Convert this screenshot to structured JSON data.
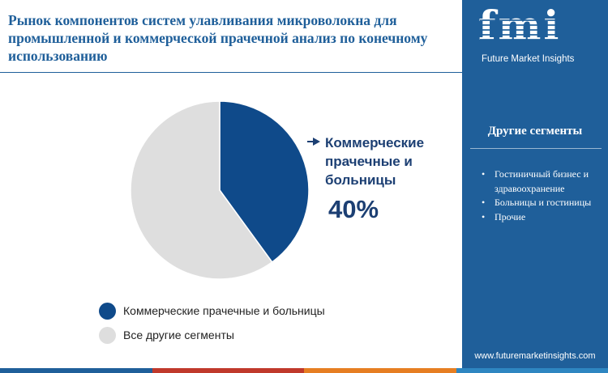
{
  "title": "Рынок компонентов систем улавливания микроволокна для промышленной и коммерческой прачечной анализ по конечному использованию",
  "brand": {
    "logo_letters": "fmi",
    "name": "Future Market Insights",
    "url": "www.futuremarketinsights.com",
    "primary_color": "#1f5f9a"
  },
  "callout": {
    "label": "Коммерческие прачечные и больницы",
    "value": "40%"
  },
  "legend": [
    {
      "label": "Коммерческие прачечные и больницы",
      "color": "#0f4a8a"
    },
    {
      "label": "Все другие сегменты",
      "color": "#dedede"
    }
  ],
  "right_panel": {
    "title": "Другие сегменты",
    "items": [
      "Гостиничный бизнес и здравоохранение",
      "Больницы и гостиницы",
      "Прочие"
    ]
  },
  "chart_data": {
    "type": "pie",
    "title": "",
    "labels": [
      "Коммерческие прачечные и больницы",
      "Все другие сегменты"
    ],
    "values": [
      40,
      60
    ],
    "colors": [
      "#0f4a8a",
      "#dedede"
    ],
    "start_angle": "12 o'clock, clockwise"
  },
  "bottom_bar_colors": [
    "#1f5f9a",
    "#c0392b",
    "#e67e22",
    "#2e86c1"
  ]
}
